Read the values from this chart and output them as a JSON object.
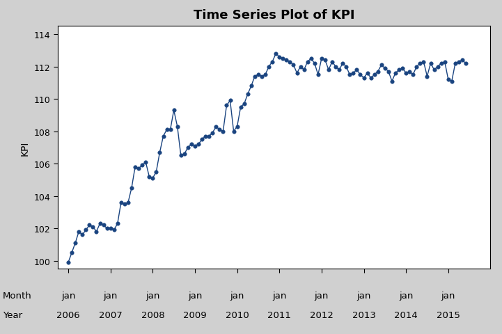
{
  "title": "Time Series Plot of KPI",
  "ylabel": "KPI",
  "month_label": "Month",
  "year_label": "Year",
  "background_color": "#d0d0d0",
  "plot_bg_color": "#ffffff",
  "line_color": "#1a4480",
  "marker_color": "#1a4480",
  "ylim": [
    99.5,
    114.5
  ],
  "yticks": [
    100,
    102,
    104,
    106,
    108,
    110,
    112,
    114
  ],
  "values": [
    99.9,
    100.5,
    101.1,
    101.8,
    101.6,
    101.9,
    102.2,
    102.1,
    101.8,
    102.3,
    102.2,
    102.0,
    102.0,
    101.9,
    102.3,
    103.6,
    103.5,
    103.6,
    104.5,
    105.8,
    105.7,
    105.9,
    106.1,
    105.2,
    105.1,
    105.5,
    106.7,
    107.7,
    108.1,
    108.1,
    109.3,
    108.3,
    106.5,
    106.6,
    107.0,
    107.2,
    107.1,
    107.2,
    107.5,
    107.7,
    107.7,
    107.9,
    108.3,
    108.1,
    108.0,
    109.6,
    109.9,
    108.0,
    108.3,
    109.5,
    109.7,
    110.3,
    110.8,
    111.4,
    111.5,
    111.4,
    111.5,
    112.0,
    112.3,
    112.8,
    112.6,
    112.5,
    112.4,
    112.3,
    112.1,
    111.6,
    112.0,
    111.8,
    112.3,
    112.5,
    112.2,
    111.5,
    112.5,
    112.4,
    111.8,
    112.3,
    112.0,
    111.8,
    112.2,
    112.0,
    111.5,
    111.6,
    111.8,
    111.5,
    111.3,
    111.6,
    111.3,
    111.5,
    111.7,
    112.1,
    111.9,
    111.7,
    111.1,
    111.6,
    111.8,
    111.9,
    111.6,
    111.7,
    111.5,
    112.0,
    112.2,
    112.3,
    111.4,
    112.2,
    111.8,
    112.0,
    112.2,
    112.3,
    111.2,
    111.1,
    112.2,
    112.3,
    112.4,
    112.2
  ],
  "start_year": 2006,
  "start_month": 1,
  "tick_years": [
    2006,
    2007,
    2008,
    2009,
    2010,
    2011,
    2012,
    2013,
    2014,
    2015
  ],
  "xlim": [
    2005.75,
    2016.0
  ]
}
